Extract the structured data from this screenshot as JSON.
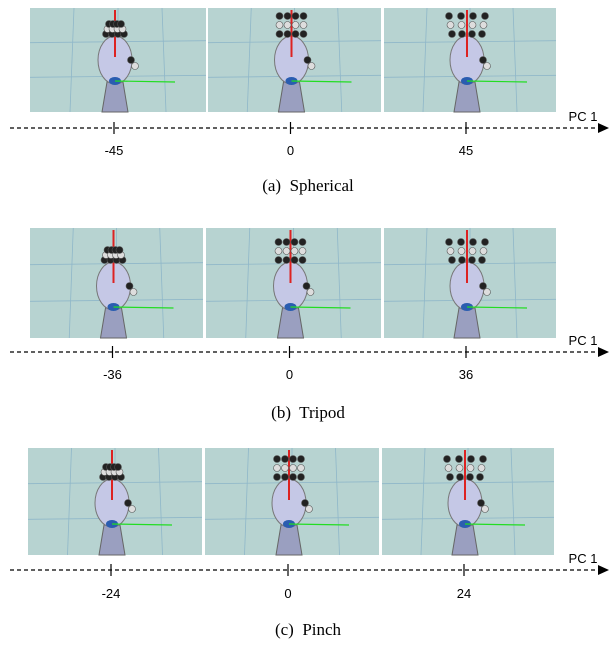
{
  "panels": [
    {
      "caption": "(a)  Spherical",
      "axis_label": "PC 1",
      "ticks": [
        -45,
        0,
        45
      ]
    },
    {
      "caption": "(b)  Tripod",
      "axis_label": "PC 1",
      "ticks": [
        -36,
        0,
        36
      ]
    },
    {
      "caption": "(c)  Pinch",
      "axis_label": "PC 1",
      "ticks": [
        -24,
        0,
        24
      ]
    }
  ]
}
